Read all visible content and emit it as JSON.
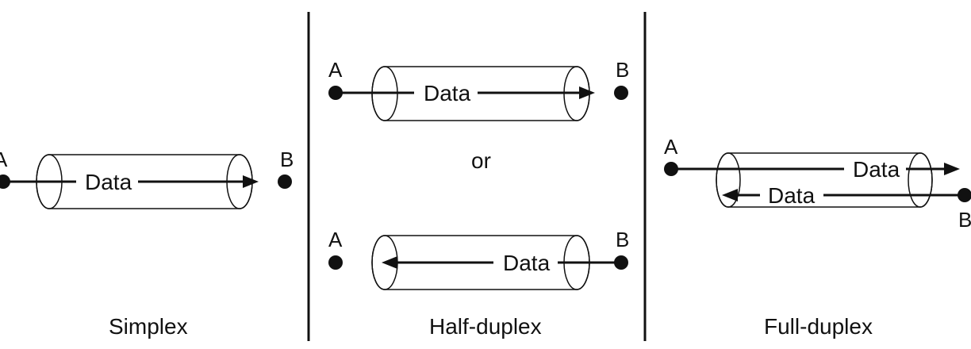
{
  "panels": {
    "simplex": {
      "caption": "Simplex",
      "node_a": "A",
      "node_b": "B",
      "data_label": "Data"
    },
    "half_duplex": {
      "caption": "Half-duplex",
      "top": {
        "node_a": "A",
        "node_b": "B",
        "data_label": "Data"
      },
      "separator": "or",
      "bottom": {
        "node_a": "A",
        "node_b": "B",
        "data_label": "Data"
      }
    },
    "full_duplex": {
      "caption": "Full-duplex",
      "node_a": "A",
      "node_b": "B",
      "data_label_forward": "Data",
      "data_label_reverse": "Data"
    }
  },
  "colors": {
    "ink": "#111111",
    "cylinder_light": "#ffffff",
    "cylinder_dark": "#c8c8c8"
  }
}
